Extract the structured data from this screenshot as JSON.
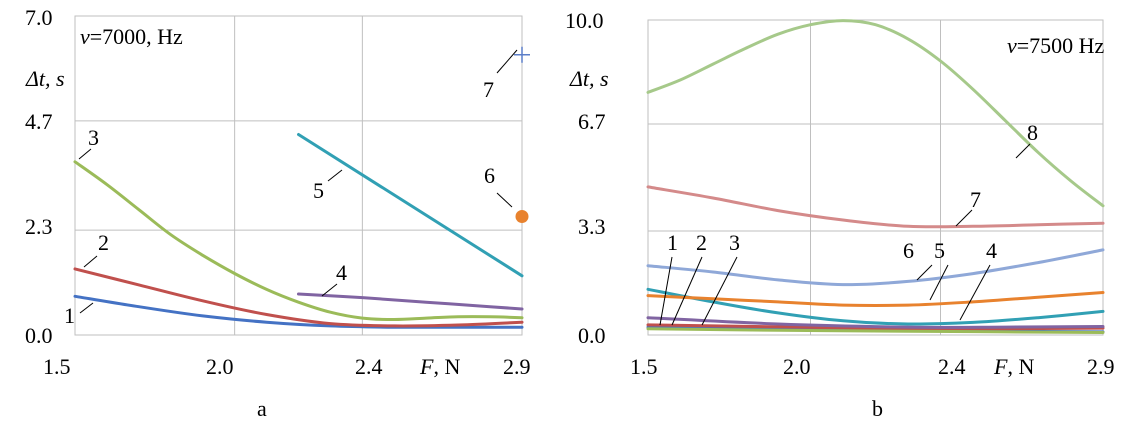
{
  "chart_data": [
    {
      "type": "line",
      "panel_label": "a",
      "annotation": {
        "symbol": "ν",
        "value": "=7000, Hz"
      },
      "ylabel": {
        "symbol": "Δt,",
        "unit": " s"
      },
      "xlabel": {
        "symbol": "F",
        "unit": ", N"
      },
      "xlim": [
        1.5,
        2.9
      ],
      "ylim": [
        0,
        7.0
      ],
      "x_ticks": [
        1.5,
        2.0,
        2.4,
        2.9
      ],
      "x_tick_labels": [
        "1.5",
        "2.0",
        "2.4",
        "2.9"
      ],
      "y_ticks": [
        0.0,
        2.3,
        4.7,
        7.0
      ],
      "y_tick_labels": [
        "0.0",
        "2.3",
        "4.7",
        "7.0"
      ],
      "grid": true,
      "series": [
        {
          "name": "1",
          "color": "#4472C4",
          "x": [
            1.5,
            1.7,
            1.9,
            2.1,
            2.3,
            2.5,
            2.7,
            2.9
          ],
          "y": [
            0.85,
            0.62,
            0.42,
            0.28,
            0.2,
            0.17,
            0.17,
            0.17
          ]
        },
        {
          "name": "2",
          "color": "#C0504D",
          "x": [
            1.5,
            1.7,
            1.9,
            2.1,
            2.3,
            2.5,
            2.7,
            2.9
          ],
          "y": [
            1.45,
            1.1,
            0.75,
            0.45,
            0.25,
            0.2,
            0.22,
            0.28
          ]
        },
        {
          "name": "3",
          "color": "#9BBB59",
          "x": [
            1.5,
            1.6,
            1.7,
            1.8,
            1.9,
            2.0,
            2.1,
            2.2,
            2.3,
            2.4,
            2.5,
            2.6,
            2.7,
            2.8,
            2.9
          ],
          "y": [
            3.8,
            3.3,
            2.75,
            2.2,
            1.75,
            1.35,
            1.0,
            0.72,
            0.5,
            0.37,
            0.34,
            0.37,
            0.4,
            0.4,
            0.38
          ]
        },
        {
          "name": "4",
          "color": "#8064A2",
          "x": [
            2.2,
            2.4,
            2.6,
            2.8,
            2.9
          ],
          "y": [
            0.9,
            0.82,
            0.72,
            0.62,
            0.57
          ]
        },
        {
          "name": "5",
          "color": "#31A0B4",
          "x": [
            2.2,
            2.9
          ],
          "y": [
            4.4,
            1.3
          ]
        },
        {
          "name": "6",
          "color": "#E8822E",
          "marker": "circle",
          "x": [
            2.9
          ],
          "y": [
            2.6
          ]
        },
        {
          "name": "7",
          "color": "#5B7EC8",
          "marker": "plus",
          "x": [
            2.9
          ],
          "y": [
            6.15
          ]
        }
      ]
    },
    {
      "type": "line",
      "panel_label": "b",
      "annotation": {
        "symbol": "ν",
        "value": "=7500 Hz"
      },
      "ylabel": {
        "symbol": "Δt,",
        "unit": " s"
      },
      "xlabel": {
        "symbol": "F",
        "unit": ", N"
      },
      "xlim": [
        1.5,
        2.9
      ],
      "ylim": [
        0,
        10.0
      ],
      "x_ticks": [
        1.5,
        2.0,
        2.4,
        2.9
      ],
      "x_tick_labels": [
        "1.5",
        "2.0",
        "2.4",
        "2.9"
      ],
      "y_ticks": [
        0.0,
        3.3,
        6.7,
        10.0
      ],
      "y_tick_labels": [
        "0.0",
        "3.3",
        "6.7",
        "10.0"
      ],
      "grid": true,
      "series": [
        {
          "name": "1",
          "color": "#4472C4",
          "x": [
            1.5,
            1.9,
            2.3,
            2.6,
            2.9
          ],
          "y": [
            0.25,
            0.2,
            0.15,
            0.12,
            0.1
          ]
        },
        {
          "name": "2",
          "color": "#C0504D",
          "x": [
            1.5,
            1.9,
            2.3,
            2.6,
            2.9
          ],
          "y": [
            0.32,
            0.26,
            0.2,
            0.2,
            0.22
          ]
        },
        {
          "name": "3",
          "color": "#9BBB59",
          "x": [
            1.5,
            1.9,
            2.3,
            2.6,
            2.9
          ],
          "y": [
            0.2,
            0.15,
            0.12,
            0.1,
            0.08
          ]
        },
        {
          "name": "4",
          "color": "#31A0B4",
          "x": [
            1.5,
            1.7,
            1.9,
            2.1,
            2.3,
            2.5,
            2.7,
            2.9
          ],
          "y": [
            1.45,
            1.05,
            0.7,
            0.45,
            0.35,
            0.4,
            0.55,
            0.75
          ]
        },
        {
          "name": "5",
          "color": "#E8822E",
          "x": [
            1.5,
            1.7,
            1.9,
            2.1,
            2.3,
            2.5,
            2.7,
            2.9
          ],
          "y": [
            1.25,
            1.15,
            1.05,
            0.95,
            0.95,
            1.05,
            1.2,
            1.35
          ]
        },
        {
          "name": "6",
          "color": "#8FA8D8",
          "x": [
            1.5,
            1.7,
            1.9,
            2.1,
            2.3,
            2.5,
            2.7,
            2.9
          ],
          "y": [
            2.2,
            2.0,
            1.75,
            1.6,
            1.7,
            1.95,
            2.3,
            2.7
          ]
        },
        {
          "name": "7",
          "color": "#D48A8A",
          "x": [
            1.5,
            1.7,
            1.9,
            2.1,
            2.3,
            2.5,
            2.7,
            2.9
          ],
          "y": [
            4.7,
            4.35,
            3.95,
            3.65,
            3.45,
            3.45,
            3.5,
            3.55
          ]
        },
        {
          "name": "8",
          "color": "#A6C98A",
          "x": [
            1.5,
            1.6,
            1.7,
            1.8,
            1.9,
            2.0,
            2.1,
            2.2,
            2.3,
            2.4,
            2.5,
            2.6,
            2.7,
            2.8,
            2.9
          ],
          "y": [
            7.7,
            8.1,
            8.6,
            9.1,
            9.55,
            9.85,
            9.98,
            9.85,
            9.4,
            8.7,
            7.8,
            6.8,
            5.8,
            4.9,
            4.1
          ]
        },
        {
          "name": "",
          "color": "#8064A2",
          "x": [
            1.5,
            1.9,
            2.3,
            2.6,
            2.9
          ],
          "y": [
            0.55,
            0.35,
            0.25,
            0.25,
            0.27
          ]
        }
      ]
    }
  ]
}
